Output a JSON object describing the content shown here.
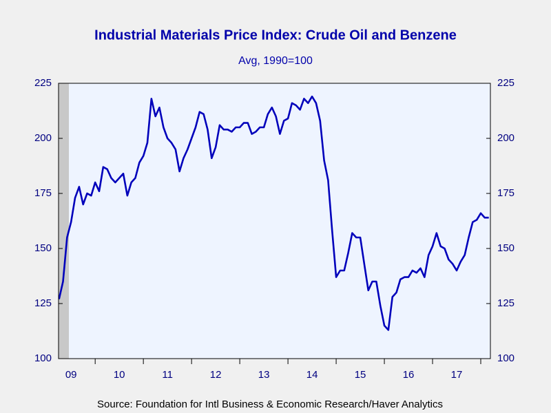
{
  "chart_data": {
    "type": "line",
    "title": "Industrial Materials Price Index: Crude Oil and Benzene",
    "subtitle": "Avg, 1990=100",
    "source": "Source:  Foundation for Intl Business & Economic Research/Haver Analytics",
    "x": [
      2009.25,
      2009.333,
      2009.417,
      2009.5,
      2009.583,
      2009.667,
      2009.75,
      2009.833,
      2009.917,
      2010.0,
      2010.083,
      2010.167,
      2010.25,
      2010.333,
      2010.417,
      2010.5,
      2010.583,
      2010.667,
      2010.75,
      2010.833,
      2010.917,
      2011.0,
      2011.083,
      2011.167,
      2011.25,
      2011.333,
      2011.417,
      2011.5,
      2011.583,
      2011.667,
      2011.75,
      2011.833,
      2011.917,
      2012.0,
      2012.083,
      2012.167,
      2012.25,
      2012.333,
      2012.417,
      2012.5,
      2012.583,
      2012.667,
      2012.75,
      2012.833,
      2012.917,
      2013.0,
      2013.083,
      2013.167,
      2013.25,
      2013.333,
      2013.417,
      2013.5,
      2013.583,
      2013.667,
      2013.75,
      2013.833,
      2013.917,
      2014.0,
      2014.083,
      2014.167,
      2014.25,
      2014.333,
      2014.417,
      2014.5,
      2014.583,
      2014.667,
      2014.75,
      2014.833,
      2014.917,
      2015.0,
      2015.083,
      2015.167,
      2015.25,
      2015.333,
      2015.417,
      2015.5,
      2015.583,
      2015.667,
      2015.75,
      2015.833,
      2015.917,
      2016.0,
      2016.083,
      2016.167,
      2016.25,
      2016.333,
      2016.417,
      2016.5,
      2016.583,
      2016.667,
      2016.75,
      2016.833,
      2016.917,
      2017.0,
      2017.083,
      2017.167,
      2017.25,
      2017.333,
      2017.417,
      2017.5,
      2017.583,
      2017.667,
      2017.75,
      2017.833,
      2017.917,
      2018.0,
      2018.083,
      2018.167
    ],
    "series": [
      {
        "name": "Crude Oil and Benzene",
        "color": "#0000bb",
        "values": [
          127,
          135,
          155,
          162,
          173,
          178,
          170,
          175,
          174,
          180,
          176,
          187,
          186,
          182,
          180,
          182,
          184,
          174,
          180,
          182,
          189,
          192,
          198,
          218,
          210,
          214,
          205,
          200,
          198,
          195,
          185,
          191,
          195,
          200,
          205,
          212,
          211,
          204,
          191,
          196,
          206,
          204,
          204,
          203,
          205,
          205,
          207,
          207,
          202,
          203,
          205,
          205,
          211,
          214,
          210,
          202,
          208,
          209,
          216,
          215,
          213,
          218,
          216,
          219,
          216,
          208,
          190,
          181,
          158,
          137,
          140,
          140,
          148,
          157,
          155,
          155,
          143,
          131,
          135,
          135,
          124,
          115,
          113,
          128,
          130,
          136,
          137,
          137,
          140,
          139,
          141,
          137,
          147,
          151,
          157,
          151,
          150,
          145,
          143,
          140,
          144,
          147,
          155,
          162,
          163,
          166,
          164,
          164
        ]
      }
    ],
    "xlim": [
      2009.24,
      2018.2
    ],
    "xticks": [
      {
        "value": 2009.5,
        "label": "09"
      },
      {
        "value": 2010.5,
        "label": "10"
      },
      {
        "value": 2011.5,
        "label": "11"
      },
      {
        "value": 2012.5,
        "label": "12"
      },
      {
        "value": 2013.5,
        "label": "13"
      },
      {
        "value": 2014.5,
        "label": "14"
      },
      {
        "value": 2015.5,
        "label": "15"
      },
      {
        "value": 2016.5,
        "label": "16"
      },
      {
        "value": 2017.5,
        "label": "17"
      }
    ],
    "ylim": [
      100,
      225
    ],
    "yticks": [
      100,
      125,
      150,
      175,
      200,
      225
    ],
    "y2lim": [
      100,
      225
    ],
    "y2ticks": [
      100,
      125,
      150,
      175,
      200,
      225
    ]
  }
}
